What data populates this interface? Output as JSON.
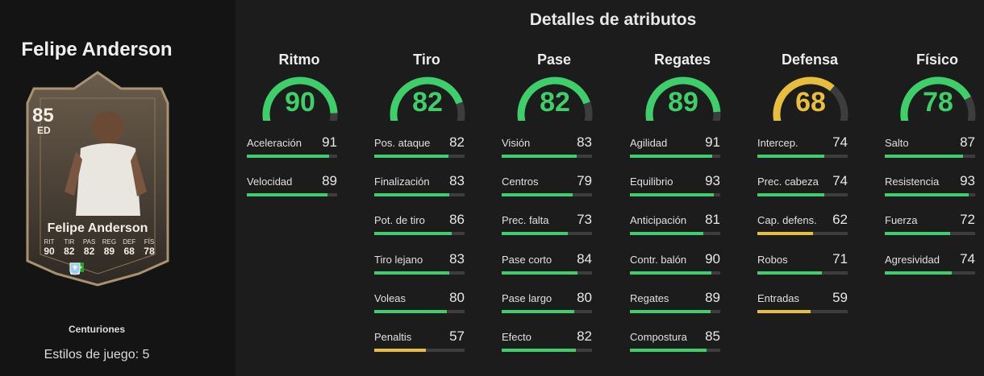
{
  "player": {
    "name": "Felipe Anderson",
    "program": "Centuriones",
    "playstyles_label": "Estilos de juego: 5",
    "card": {
      "rating": "85",
      "position": "ED",
      "name": "Felipe Anderson",
      "stats": [
        {
          "label": "RIT",
          "value": "90"
        },
        {
          "label": "TIR",
          "value": "82"
        },
        {
          "label": "PAS",
          "value": "82"
        },
        {
          "label": "REG",
          "value": "89"
        },
        {
          "label": "DEF",
          "value": "68"
        },
        {
          "label": "FÍS",
          "value": "78"
        }
      ]
    }
  },
  "section_title": "Detalles de atributos",
  "colors": {
    "green": "#3fcf6a",
    "yellow": "#e8bf3c",
    "track": "#3d3d3d"
  },
  "categories": [
    {
      "title": "Ritmo",
      "value": 90,
      "attributes": [
        {
          "name": "Aceleración",
          "value": 91
        },
        {
          "name": "Velocidad",
          "value": 89
        }
      ]
    },
    {
      "title": "Tiro",
      "value": 82,
      "attributes": [
        {
          "name": "Pos. ataque",
          "value": 82
        },
        {
          "name": "Finalización",
          "value": 83
        },
        {
          "name": "Pot. de tiro",
          "value": 86
        },
        {
          "name": "Tiro lejano",
          "value": 83
        },
        {
          "name": "Voleas",
          "value": 80
        },
        {
          "name": "Penaltis",
          "value": 57
        }
      ]
    },
    {
      "title": "Pase",
      "value": 82,
      "attributes": [
        {
          "name": "Visión",
          "value": 83
        },
        {
          "name": "Centros",
          "value": 79
        },
        {
          "name": "Prec. falta",
          "value": 73
        },
        {
          "name": "Pase corto",
          "value": 84
        },
        {
          "name": "Pase largo",
          "value": 80
        },
        {
          "name": "Efecto",
          "value": 82
        }
      ]
    },
    {
      "title": "Regates",
      "value": 89,
      "attributes": [
        {
          "name": "Agilidad",
          "value": 91
        },
        {
          "name": "Equilibrio",
          "value": 93
        },
        {
          "name": "Anticipación",
          "value": 81
        },
        {
          "name": "Contr. balón",
          "value": 90
        },
        {
          "name": "Regates",
          "value": 89
        },
        {
          "name": "Compostura",
          "value": 85
        }
      ]
    },
    {
      "title": "Defensa",
      "value": 68,
      "attributes": [
        {
          "name": "Intercep.",
          "value": 74
        },
        {
          "name": "Prec. cabeza",
          "value": 74
        },
        {
          "name": "Cap. defens.",
          "value": 62
        },
        {
          "name": "Robos",
          "value": 71
        },
        {
          "name": "Entradas",
          "value": 59
        }
      ]
    },
    {
      "title": "Físico",
      "value": 78,
      "attributes": [
        {
          "name": "Salto",
          "value": 87
        },
        {
          "name": "Resistencia",
          "value": 93
        },
        {
          "name": "Fuerza",
          "value": 72
        },
        {
          "name": "Agresividad",
          "value": 74
        }
      ]
    }
  ]
}
